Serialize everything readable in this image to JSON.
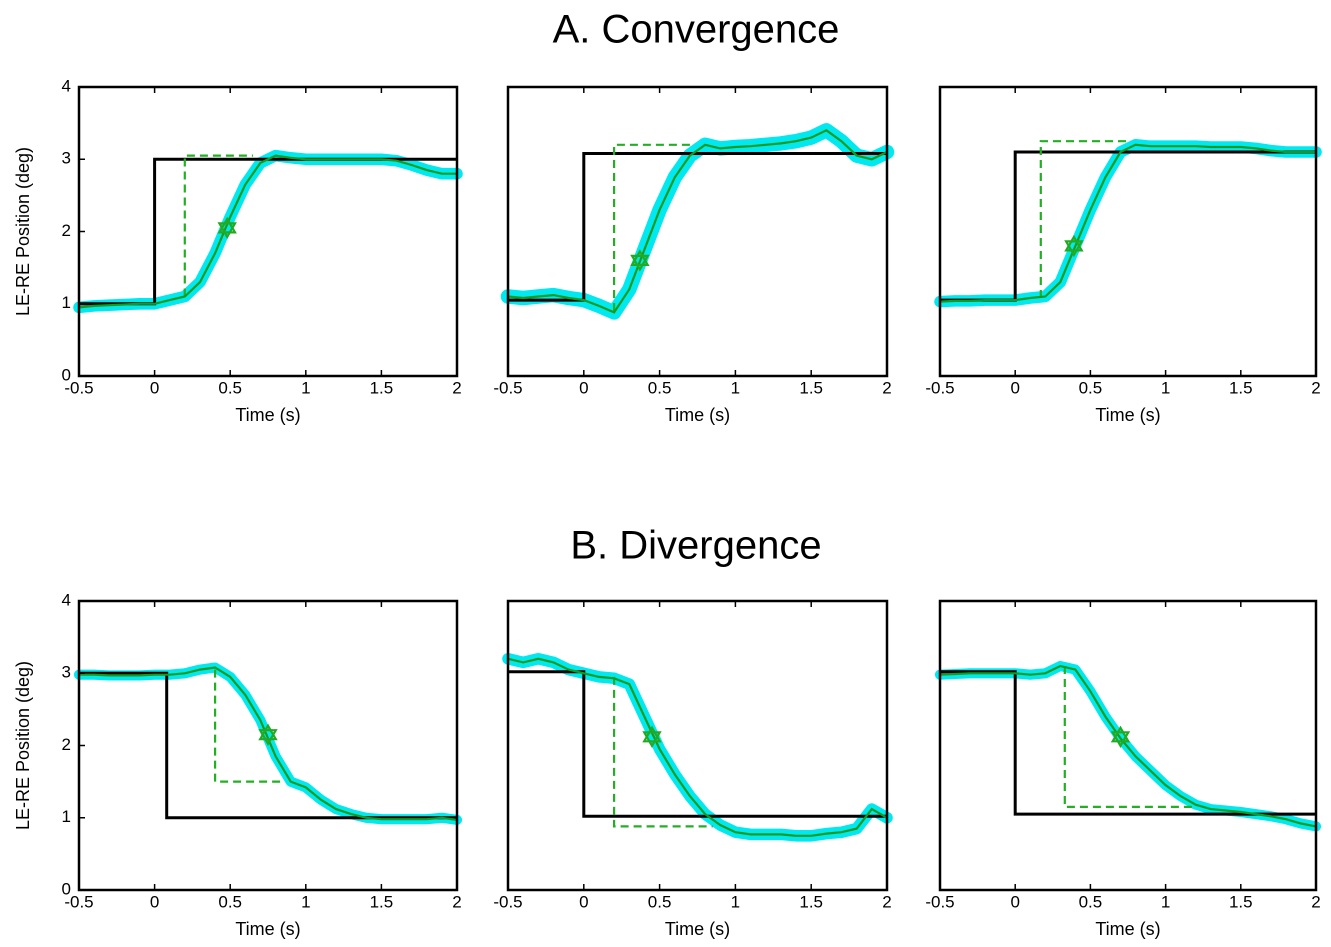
{
  "sections": [
    {
      "title": "A. Convergence"
    },
    {
      "title": "B. Divergence"
    }
  ],
  "chart_data": [
    {
      "type": "line",
      "xlabel": "Time (s)",
      "ylabel": "LE-RE Position (deg)",
      "xlim": [
        -0.5,
        2
      ],
      "ylim": [
        0,
        4
      ],
      "xticks": [
        -0.5,
        0,
        0.5,
        1,
        1.5,
        2
      ],
      "yticks": [
        0,
        1,
        2,
        3,
        4
      ],
      "series": [
        {
          "color": "#000000",
          "style": "solid",
          "x": [
            -0.5,
            0,
            0,
            2
          ],
          "values": [
            1,
            1,
            3,
            3
          ]
        },
        {
          "color": "#22b022",
          "style": "dashed",
          "x": [
            0.2,
            0.2,
            0.65
          ],
          "values": [
            1.1,
            3.05,
            3.05
          ]
        },
        {
          "color": "#1a9a1a",
          "style": "solid",
          "band": 0.08,
          "band_color": "#00e8f0",
          "x": [
            -0.5,
            -0.4,
            -0.3,
            -0.2,
            -0.1,
            0,
            0.1,
            0.2,
            0.3,
            0.4,
            0.5,
            0.6,
            0.7,
            0.8,
            0.9,
            1,
            1.1,
            1.2,
            1.3,
            1.4,
            1.5,
            1.6,
            1.7,
            1.8,
            1.9,
            2
          ],
          "values": [
            0.95,
            0.97,
            0.98,
            0.99,
            1.0,
            1.0,
            1.05,
            1.1,
            1.3,
            1.7,
            2.2,
            2.65,
            2.95,
            3.05,
            3.02,
            3.0,
            3.0,
            3.0,
            3.0,
            3.0,
            3.0,
            2.98,
            2.92,
            2.85,
            2.8,
            2.8
          ]
        }
      ],
      "marker": {
        "x": 0.48,
        "y": 2.05,
        "color": "#22aa22"
      }
    },
    {
      "type": "line",
      "xlabel": "Time (s)",
      "xlim": [
        -0.5,
        2
      ],
      "ylim": [
        0,
        4
      ],
      "xticks": [
        -0.5,
        0,
        0.5,
        1,
        1.5,
        2
      ],
      "series": [
        {
          "color": "#000000",
          "style": "solid",
          "x": [
            -0.5,
            0,
            0,
            2
          ],
          "values": [
            1.05,
            1.05,
            3.08,
            3.08
          ]
        },
        {
          "color": "#22b022",
          "style": "dashed",
          "x": [
            0.2,
            0.2,
            0.7
          ],
          "values": [
            0.9,
            3.2,
            3.2
          ]
        },
        {
          "color": "#1a9a1a",
          "style": "solid",
          "band": 0.1,
          "band_color": "#00e8f0",
          "x": [
            -0.5,
            -0.4,
            -0.3,
            -0.2,
            -0.1,
            0,
            0.1,
            0.2,
            0.3,
            0.4,
            0.5,
            0.6,
            0.7,
            0.8,
            0.9,
            1,
            1.1,
            1.2,
            1.3,
            1.4,
            1.5,
            1.6,
            1.7,
            1.8,
            1.9,
            2
          ],
          "values": [
            1.1,
            1.08,
            1.1,
            1.12,
            1.08,
            1.05,
            0.97,
            0.88,
            1.2,
            1.75,
            2.3,
            2.75,
            3.05,
            3.2,
            3.15,
            3.17,
            3.18,
            3.2,
            3.22,
            3.25,
            3.3,
            3.4,
            3.25,
            3.05,
            3.0,
            3.1
          ]
        }
      ],
      "marker": {
        "x": 0.37,
        "y": 1.6,
        "color": "#22aa22"
      }
    },
    {
      "type": "line",
      "xlabel": "Time (s)",
      "xlim": [
        -0.5,
        2
      ],
      "ylim": [
        0,
        4
      ],
      "xticks": [
        -0.5,
        0,
        0.5,
        1,
        1.5,
        2
      ],
      "series": [
        {
          "color": "#000000",
          "style": "solid",
          "x": [
            -0.5,
            0,
            0,
            2
          ],
          "values": [
            1.05,
            1.05,
            3.1,
            3.1
          ]
        },
        {
          "color": "#22b022",
          "style": "dashed",
          "x": [
            0.17,
            0.17,
            0.75
          ],
          "values": [
            1.08,
            3.25,
            3.25
          ]
        },
        {
          "color": "#1a9a1a",
          "style": "solid",
          "band": 0.08,
          "band_color": "#00e8f0",
          "x": [
            -0.5,
            -0.4,
            -0.3,
            -0.2,
            -0.1,
            0,
            0.1,
            0.2,
            0.3,
            0.4,
            0.5,
            0.6,
            0.7,
            0.8,
            0.9,
            1,
            1.1,
            1.2,
            1.3,
            1.4,
            1.5,
            1.6,
            1.7,
            1.8,
            1.9,
            2
          ],
          "values": [
            1.03,
            1.04,
            1.04,
            1.05,
            1.05,
            1.05,
            1.08,
            1.1,
            1.3,
            1.8,
            2.3,
            2.75,
            3.1,
            3.2,
            3.18,
            3.18,
            3.18,
            3.18,
            3.17,
            3.17,
            3.17,
            3.15,
            3.12,
            3.1,
            3.1,
            3.1
          ]
        }
      ],
      "marker": {
        "x": 0.39,
        "y": 1.8,
        "color": "#22aa22"
      }
    },
    {
      "type": "line",
      "xlabel": "Time (s)",
      "ylabel": "LE-RE Position (deg)",
      "xlim": [
        -0.5,
        2
      ],
      "ylim": [
        0,
        4
      ],
      "xticks": [
        -0.5,
        0,
        0.5,
        1,
        1.5,
        2
      ],
      "yticks": [
        0,
        1,
        2,
        3,
        4
      ],
      "series": [
        {
          "color": "#000000",
          "style": "solid",
          "x": [
            -0.5,
            0.08,
            0.08,
            2
          ],
          "values": [
            3,
            3,
            1,
            1
          ]
        },
        {
          "color": "#22b022",
          "style": "dashed",
          "x": [
            0.4,
            0.4,
            0.85
          ],
          "values": [
            3.05,
            1.5,
            1.5
          ]
        },
        {
          "color": "#1a9a1a",
          "style": "solid",
          "band": 0.07,
          "band_color": "#00e8f0",
          "x": [
            -0.5,
            -0.4,
            -0.3,
            -0.2,
            -0.1,
            0,
            0.1,
            0.2,
            0.3,
            0.4,
            0.5,
            0.6,
            0.7,
            0.8,
            0.9,
            1,
            1.1,
            1.2,
            1.3,
            1.4,
            1.5,
            1.6,
            1.7,
            1.8,
            1.9,
            2
          ],
          "values": [
            2.98,
            2.98,
            2.97,
            2.97,
            2.97,
            2.98,
            2.98,
            3.0,
            3.05,
            3.08,
            2.95,
            2.7,
            2.35,
            1.85,
            1.5,
            1.42,
            1.25,
            1.12,
            1.05,
            1.0,
            0.98,
            0.98,
            0.98,
            0.98,
            1.0,
            0.97
          ]
        }
      ],
      "marker": {
        "x": 0.75,
        "y": 2.15,
        "color": "#22aa22"
      }
    },
    {
      "type": "line",
      "xlabel": "Time (s)",
      "xlim": [
        -0.5,
        2
      ],
      "ylim": [
        0,
        4
      ],
      "xticks": [
        -0.5,
        0,
        0.5,
        1,
        1.5,
        2
      ],
      "series": [
        {
          "color": "#000000",
          "style": "solid",
          "x": [
            -0.5,
            0,
            0,
            2
          ],
          "values": [
            3.02,
            3.02,
            1.02,
            1.02
          ]
        },
        {
          "color": "#22b022",
          "style": "dashed",
          "x": [
            0.2,
            0.2,
            0.85
          ],
          "values": [
            2.95,
            0.88,
            0.88
          ]
        },
        {
          "color": "#1a9a1a",
          "style": "solid",
          "band": 0.08,
          "band_color": "#00e8f0",
          "x": [
            -0.5,
            -0.4,
            -0.3,
            -0.2,
            -0.1,
            0,
            0.1,
            0.2,
            0.3,
            0.4,
            0.5,
            0.6,
            0.7,
            0.8,
            0.9,
            1,
            1.1,
            1.2,
            1.3,
            1.4,
            1.5,
            1.6,
            1.7,
            1.8,
            1.9,
            2
          ],
          "values": [
            3.2,
            3.15,
            3.2,
            3.15,
            3.05,
            3.0,
            2.95,
            2.93,
            2.85,
            2.4,
            1.95,
            1.6,
            1.3,
            1.05,
            0.9,
            0.8,
            0.77,
            0.77,
            0.77,
            0.75,
            0.75,
            0.78,
            0.8,
            0.85,
            1.12,
            1.0
          ]
        }
      ],
      "marker": {
        "x": 0.45,
        "y": 2.12,
        "color": "#22aa22"
      }
    },
    {
      "type": "line",
      "xlabel": "Time (s)",
      "xlim": [
        -0.5,
        2
      ],
      "ylim": [
        0,
        4
      ],
      "xticks": [
        -0.5,
        0,
        0.5,
        1,
        1.5,
        2
      ],
      "series": [
        {
          "color": "#000000",
          "style": "solid",
          "x": [
            -0.5,
            0,
            0,
            2
          ],
          "values": [
            3.02,
            3.02,
            1.05,
            1.05
          ]
        },
        {
          "color": "#22b022",
          "style": "dashed",
          "x": [
            0.33,
            0.33,
            1.2
          ],
          "values": [
            3.1,
            1.15,
            1.15
          ]
        },
        {
          "color": "#1a9a1a",
          "style": "solid",
          "band": 0.07,
          "band_color": "#00e8f0",
          "x": [
            -0.5,
            -0.4,
            -0.3,
            -0.2,
            -0.1,
            0,
            0.1,
            0.2,
            0.3,
            0.4,
            0.5,
            0.6,
            0.7,
            0.8,
            0.9,
            1,
            1.1,
            1.2,
            1.3,
            1.4,
            1.5,
            1.6,
            1.7,
            1.8,
            1.9,
            2
          ],
          "values": [
            2.98,
            2.99,
            3.0,
            3.0,
            3.0,
            3.0,
            2.98,
            3.0,
            3.1,
            3.05,
            2.75,
            2.4,
            2.1,
            1.85,
            1.65,
            1.45,
            1.3,
            1.18,
            1.12,
            1.1,
            1.08,
            1.05,
            1.02,
            0.98,
            0.92,
            0.88
          ]
        }
      ],
      "marker": {
        "x": 0.7,
        "y": 2.12,
        "color": "#22aa22"
      }
    }
  ]
}
